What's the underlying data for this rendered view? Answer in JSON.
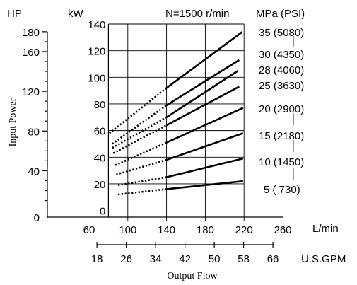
{
  "chart_data": {
    "type": "line",
    "annotation": "N=1500 r/min",
    "xlabel": "Output Flow",
    "ylabel": "Input Power",
    "x_unit_primary": "L/min",
    "x_unit_secondary": "U.S.GPM",
    "y_unit_kw": "kW",
    "y_unit_hp": "HP",
    "series_header": "MPa (PSI)",
    "x_primary_ticks": [
      60,
      100,
      140,
      180,
      220,
      260
    ],
    "x_secondary_ticks": [
      18,
      26,
      34,
      42,
      50,
      58,
      66
    ],
    "y_kw_ticks": [
      0,
      20,
      40,
      60,
      80,
      100,
      120,
      140
    ],
    "y_hp_ticks": [
      0,
      40,
      80,
      120,
      160,
      180
    ],
    "xlim": [
      60,
      260
    ],
    "ylim_kw": [
      -5,
      140
    ],
    "series": [
      {
        "name": "5 ( 730)",
        "dotted": [
          [
            90,
            12
          ],
          [
            140,
            16
          ]
        ],
        "solid": [
          [
            140,
            16
          ],
          [
            219,
            22
          ]
        ]
      },
      {
        "name": "10 (1450)",
        "dotted": [
          [
            90,
            19
          ],
          [
            140,
            25
          ]
        ],
        "solid": [
          [
            140,
            25
          ],
          [
            219,
            39
          ]
        ]
      },
      {
        "name": "15 (2180)",
        "dotted": [
          [
            88,
            27
          ],
          [
            140,
            38
          ]
        ],
        "solid": [
          [
            140,
            38
          ],
          [
            219,
            58
          ]
        ]
      },
      {
        "name": "20 (2900)",
        "dotted": [
          [
            87,
            34
          ],
          [
            140,
            51
          ]
        ],
        "solid": [
          [
            140,
            51
          ],
          [
            219,
            77
          ]
        ]
      },
      {
        "name": "25 (3630)",
        "dotted": [
          [
            85,
            43
          ],
          [
            140,
            64
          ]
        ],
        "solid": [
          [
            140,
            64
          ],
          [
            215,
            93
          ]
        ]
      },
      {
        "name": "28 (4060)",
        "dotted": [
          [
            84,
            47
          ],
          [
            140,
            70
          ]
        ],
        "solid": [
          [
            140,
            70
          ],
          [
            214,
            105
          ]
        ]
      },
      {
        "name": "30 (4350)",
        "dotted": [
          [
            84,
            50
          ],
          [
            140,
            79
          ]
        ],
        "solid": [
          [
            140,
            79
          ],
          [
            215,
            113
          ]
        ]
      },
      {
        "name": "35 (5080)",
        "dotted": [
          [
            81,
            58
          ],
          [
            140,
            92
          ]
        ],
        "solid": [
          [
            140,
            92
          ],
          [
            218,
            134
          ]
        ]
      }
    ]
  }
}
